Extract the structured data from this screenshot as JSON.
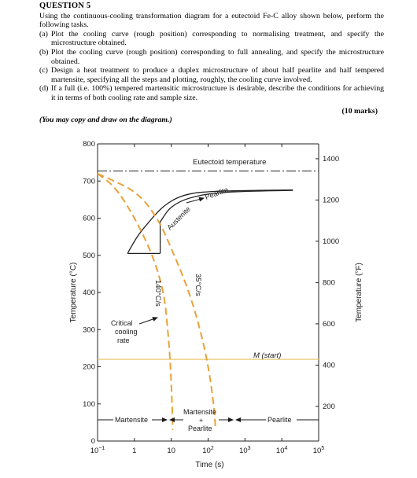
{
  "question": {
    "title": "QUESTION 5",
    "intro": "Using the continuous-cooling transformation diagram for a eutectoid Fe-C alloy shown below, perform the following tasks.",
    "tasks": [
      {
        "label": "(a)",
        "text": "Plot the cooling curve (rough position) corresponding to normalising treatment, and specify the microstructure obtained."
      },
      {
        "label": "(b)",
        "text": "Plot the cooling curve (rough position) corresponding to full annealing, and specify the microstructure obtained."
      },
      {
        "label": "(c)",
        "text": "Design a heat treatment to produce a duplex microstructure of about half pearlite and half tempered martensite, specifying all the steps and plotting, roughly, the cooling curve involved."
      },
      {
        "label": "(d)",
        "text": "If a full (i.e. 100%) tempered martensitic microstructure is desirable, describe the conditions for achieving it in terms of both cooling rate and sample size."
      }
    ],
    "marks": "(10 marks)",
    "note": "(You may copy and draw on the diagram.)"
  },
  "chart_data": {
    "type": "line",
    "xlabel": "Time (s)",
    "ylabel_left": "Temperature (°C)",
    "ylabel_right": "Temperature (°F)",
    "x_scale": "log",
    "xlim": [
      0.1,
      100000
    ],
    "ylim": [
      0,
      800
    ],
    "x_ticks": [
      {
        "value": 0.1,
        "base": "10",
        "exp": "−1"
      },
      {
        "value": 1,
        "base": "1",
        "exp": ""
      },
      {
        "value": 10,
        "base": "10",
        "exp": ""
      },
      {
        "value": 100,
        "base": "10",
        "exp": "2"
      },
      {
        "value": 1000,
        "base": "10",
        "exp": "3"
      },
      {
        "value": 10000,
        "base": "10",
        "exp": "4"
      },
      {
        "value": 100000,
        "base": "10",
        "exp": "5"
      }
    ],
    "y_ticks_left": [
      0,
      100,
      200,
      300,
      400,
      500,
      600,
      700,
      800
    ],
    "y_ticks_right": [
      200,
      400,
      600,
      800,
      1000,
      1200,
      1400
    ],
    "eutectoid_temperature": 727,
    "martensite_start": 220,
    "curves": {
      "transformation_start": [
        [
          0.65,
          505
        ],
        [
          1.2,
          550
        ],
        [
          2.5,
          590
        ],
        [
          6,
          630
        ],
        [
          15,
          655
        ],
        [
          40,
          667
        ],
        [
          150,
          672
        ],
        [
          800,
          674
        ],
        [
          20000,
          676
        ]
      ],
      "transformation_end": [
        [
          5,
          590
        ],
        [
          9,
          625
        ],
        [
          20,
          647
        ],
        [
          60,
          661
        ],
        [
          200,
          668
        ],
        [
          1000,
          672
        ],
        [
          20000,
          675
        ]
      ],
      "critical_rate_limit": [
        [
          5,
          590
        ],
        [
          5,
          505
        ]
      ],
      "horizontal_connector": [
        [
          0.65,
          505
        ],
        [
          5,
          505
        ]
      ]
    },
    "cooling_curves": [
      {
        "label": "140°C/s",
        "points": [
          [
            0.1,
            720
          ],
          [
            0.3,
            680
          ],
          [
            1,
            600
          ],
          [
            3,
            500
          ],
          [
            6,
            400
          ],
          [
            8,
            300
          ],
          [
            9.5,
            200
          ],
          [
            10.5,
            100
          ],
          [
            11,
            30
          ]
        ]
      },
      {
        "label": "35°C/s",
        "points": [
          [
            0.1,
            720
          ],
          [
            1,
            670
          ],
          [
            4,
            600
          ],
          [
            12,
            500
          ],
          [
            30,
            400
          ],
          [
            60,
            300
          ],
          [
            100,
            200
          ],
          [
            140,
            100
          ],
          [
            160,
            30
          ]
        ]
      }
    ],
    "annotations": {
      "eutectoid": "Eutectoid temperature",
      "austenite": "Austenite",
      "pearlite_top": "Pearlite",
      "rate_140": "140°C/s",
      "rate_35": "35°C/s",
      "critical_1": "Critical",
      "critical_2": "cooling",
      "critical_3": "rate",
      "m_start": "M (start)",
      "martensite": "Martensite",
      "mp_1": "Martensite",
      "mp_2": "+",
      "mp_3": "Pearlite",
      "pearlite_bottom": "Pearlite"
    },
    "colors": {
      "axis": "#222222",
      "dashed_curves": "#e8a23a",
      "m_start_line": "#e8c25a"
    }
  }
}
